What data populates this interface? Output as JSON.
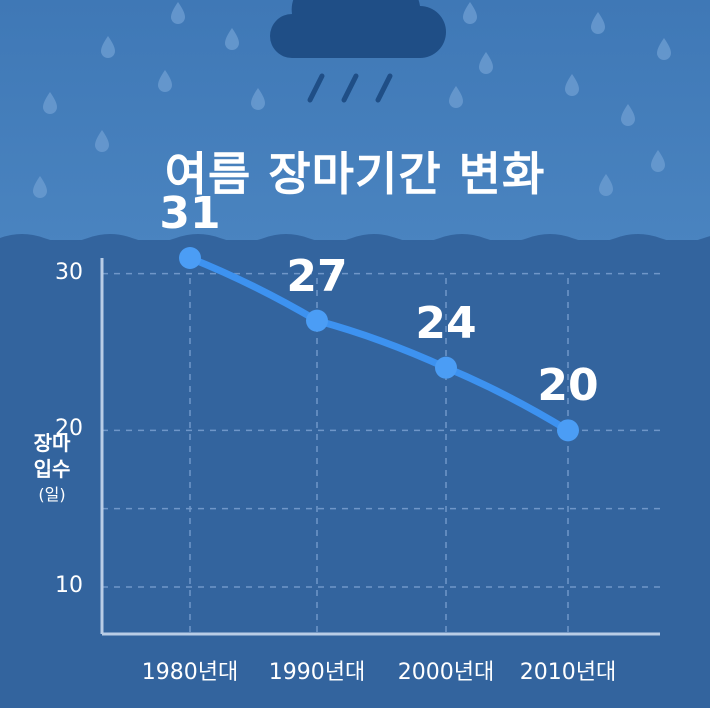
{
  "title": "여름 장마기간 변화",
  "ylabel": {
    "line1": "장마",
    "line2": "입수",
    "unit": "(일)"
  },
  "decor": {
    "cloud_icon": "rain-cloud-icon",
    "drop_icon": "raindrop-icon"
  },
  "colors": {
    "line": "#3d92f0",
    "point": "#4b9df5",
    "grid": "#6f96c8",
    "axis": "#b9cde6",
    "cloud": "#1f4e86",
    "drop": "#6a9bd0"
  },
  "chart_data": {
    "type": "line",
    "categories": [
      "1980년대",
      "1990년대",
      "2000년대",
      "2010년대"
    ],
    "values": [
      31,
      27,
      24,
      20
    ],
    "data_labels": [
      "31",
      "27",
      "24",
      "20"
    ],
    "yticks": [
      10,
      20,
      30
    ],
    "ytick_labels": [
      "10",
      "20",
      "30"
    ],
    "ylim": [
      7,
      31
    ],
    "grid": true,
    "title": "여름 장마기간 변화",
    "ylabel": "장마 입수 (일)",
    "xlabel": ""
  }
}
